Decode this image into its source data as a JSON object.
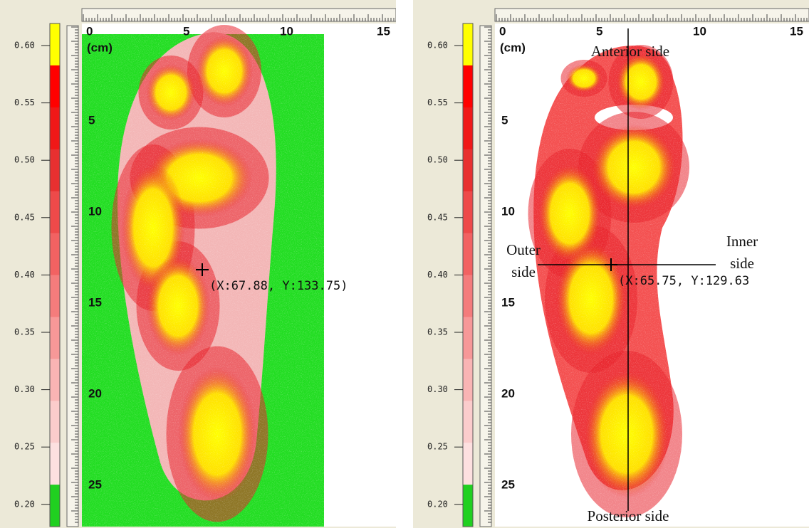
{
  "panels": [
    {
      "scale": {
        "labels": [
          "0.60",
          "0.55",
          "0.50",
          "0.45",
          "0.40",
          "0.35",
          "0.30",
          "0.25",
          "0.20"
        ]
      },
      "x_ruler": {
        "labels": [
          "0",
          "5",
          "10",
          "15"
        ]
      },
      "y_ruler": {
        "unit": "(cm)",
        "labels": [
          "5",
          "10",
          "15",
          "20",
          "25"
        ]
      },
      "readout": "(X:67.88, Y:133.75)"
    },
    {
      "scale": {
        "labels": [
          "0.60",
          "0.55",
          "0.50",
          "0.45",
          "0.40",
          "0.35",
          "0.30",
          "0.25",
          "0.20"
        ]
      },
      "x_ruler": {
        "labels": [
          "0",
          "5",
          "10",
          "15"
        ]
      },
      "y_ruler": {
        "unit": "(cm)",
        "labels": [
          "5",
          "10",
          "15",
          "20",
          "25"
        ]
      },
      "readout": "(X:65.75, Y:129.63",
      "annotations": {
        "anterior": "Anterior side",
        "posterior": "Posterior side",
        "outer": [
          "Outer",
          "side"
        ],
        "inner": [
          "Inner",
          "side"
        ]
      }
    }
  ]
}
